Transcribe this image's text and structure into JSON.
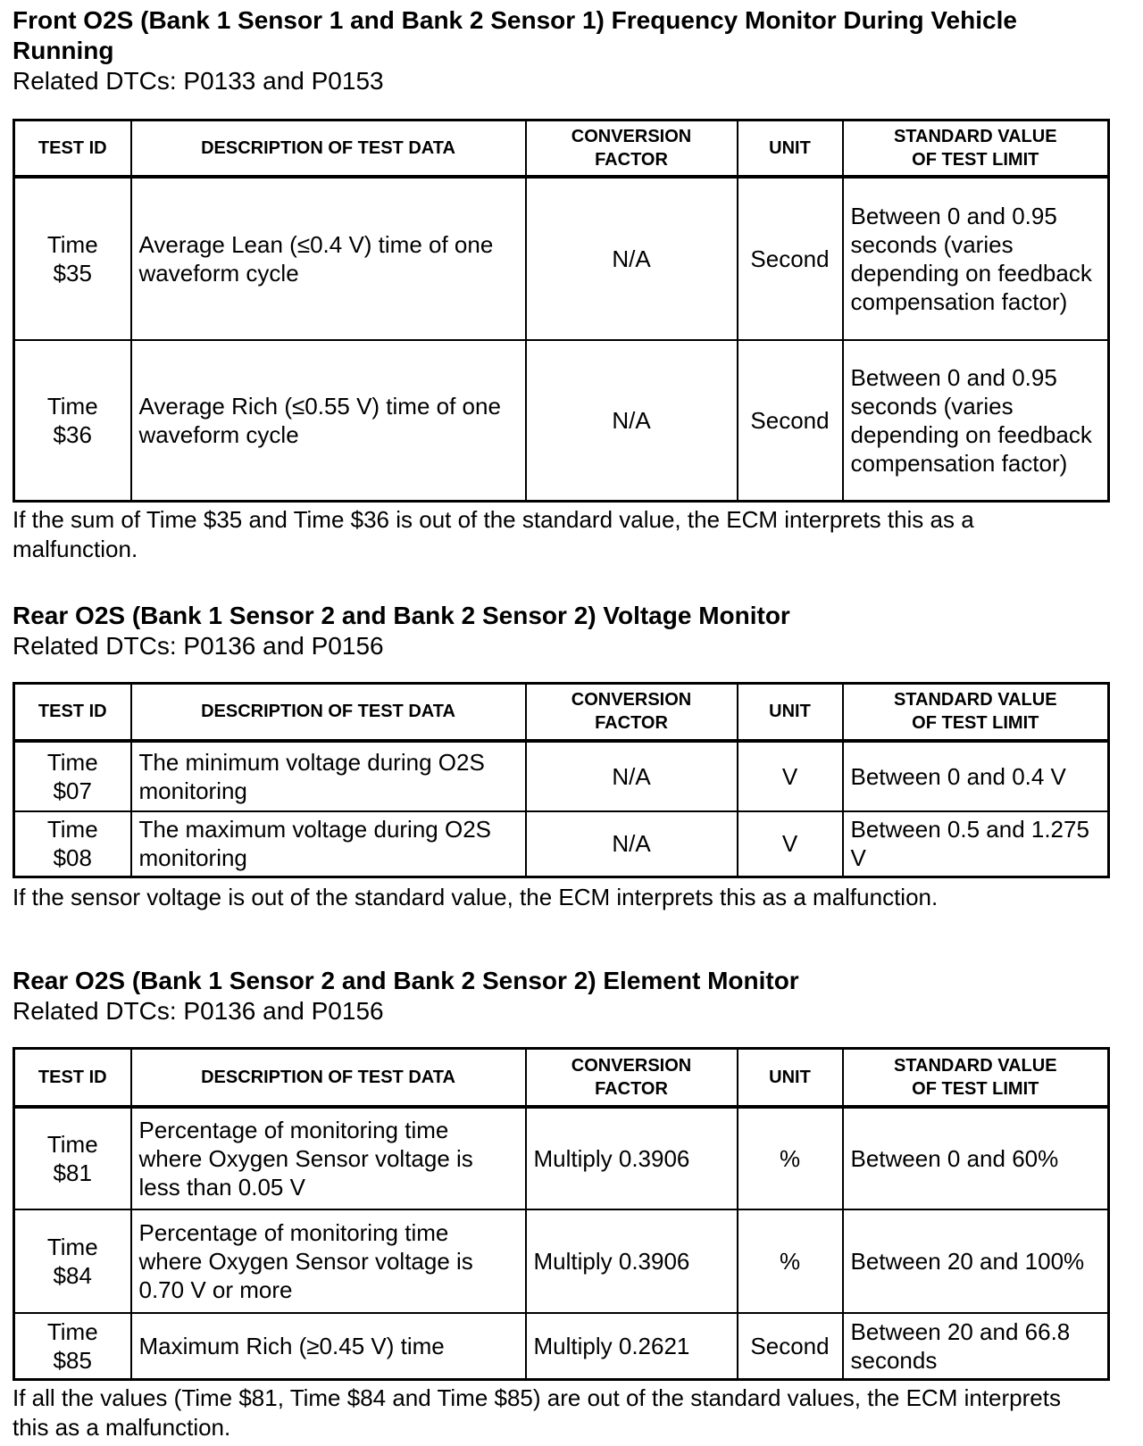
{
  "headers": [
    "TEST ID",
    "DESCRIPTION OF TEST DATA",
    "CONVERSION FACTOR",
    "UNIT",
    "STANDARD VALUE OF TEST LIMIT"
  ],
  "sections": [
    {
      "title": "Front O2S (Bank 1 Sensor 1 and Bank 2 Sensor 1) Frequency Monitor During Vehicle Running",
      "dtcs": "Related DTCs: P0133 and P0153",
      "rows": [
        {
          "test_id": "Time $35",
          "description": "Average Lean (≤0.4 V) time of one waveform cycle",
          "conversion": "N/A",
          "unit": "Second",
          "limit": "Between 0 and 0.95 seconds (varies depending on feedback compensation factor)"
        },
        {
          "test_id": "Time $36",
          "description": "Average Rich (≤0.55 V) time of one waveform cycle",
          "conversion": "N/A",
          "unit": "Second",
          "limit": "Between 0 and 0.95 seconds (varies depending on feedback compensation factor)"
        }
      ],
      "note": "If the sum of Time $35 and Time $36 is out of the standard value, the ECM interprets this as a malfunction."
    },
    {
      "title": "Rear O2S (Bank 1 Sensor 2 and Bank 2 Sensor 2) Voltage Monitor",
      "dtcs": "Related DTCs: P0136 and P0156",
      "rows": [
        {
          "test_id": "Time $07",
          "description": "The minimum voltage during O2S monitoring",
          "conversion": "N/A",
          "unit": "V",
          "limit": "Between 0 and 0.4 V"
        },
        {
          "test_id": "Time $08",
          "description": "The maximum voltage during O2S monitoring",
          "conversion": "N/A",
          "unit": "V",
          "limit": "Between 0.5 and 1.275 V"
        }
      ],
      "note": "If the sensor voltage is out of the standard value, the ECM interprets this as a malfunction."
    },
    {
      "title": "Rear O2S (Bank 1 Sensor 2 and Bank 2 Sensor 2) Element Monitor",
      "dtcs": "Related DTCs: P0136 and P0156",
      "rows": [
        {
          "test_id": "Time $81",
          "description": "Percentage of monitoring time where Oxygen Sensor voltage is less than 0.05 V",
          "conversion": "Multiply 0.3906",
          "unit": "%",
          "limit": "Between 0 and 60%"
        },
        {
          "test_id": "Time $84",
          "description": "Percentage of monitoring time where Oxygen Sensor voltage is 0.70 V or more",
          "conversion": "Multiply 0.3906",
          "unit": "%",
          "limit": "Between 20 and 100%"
        },
        {
          "test_id": "Time $85",
          "description": "Maximum Rich (≥0.45 V) time",
          "conversion": "Multiply 0.2621",
          "unit": "Second",
          "limit": "Between 20 and 66.8 seconds"
        }
      ],
      "note": "If all the values (Time $81, Time $84 and Time $85) are out of the standard values, the ECM interprets this as a malfunction."
    }
  ]
}
